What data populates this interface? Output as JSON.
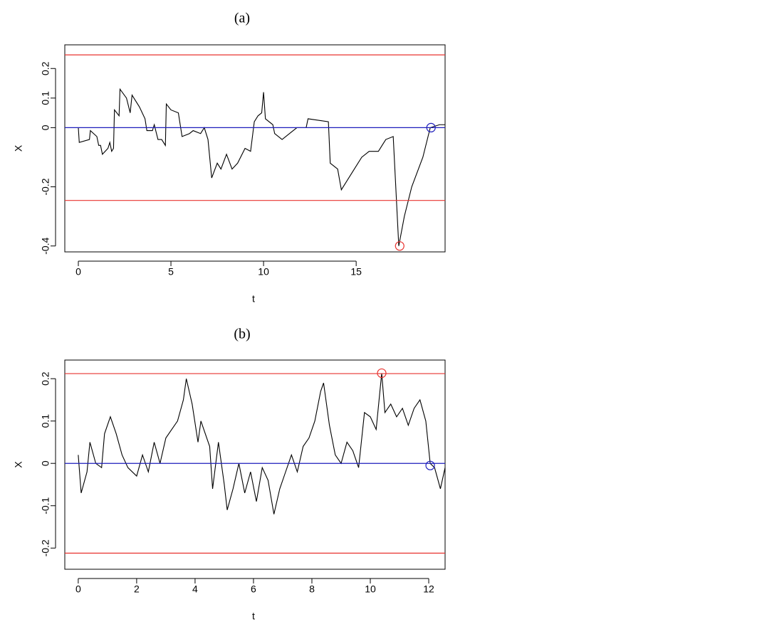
{
  "chart_data": [
    {
      "type": "line",
      "title": "(a)",
      "x_label": "t",
      "y_label": "X",
      "xlim": [
        -0.73,
        19.8
      ],
      "ylim": [
        -0.42,
        0.28
      ],
      "xticks": [
        0,
        5,
        10,
        15
      ],
      "yticks": [
        -0.4,
        -0.2,
        0.0,
        0.1,
        0.2
      ],
      "x": [
        0,
        0.05,
        0.6,
        0.65,
        1.0,
        1.1,
        1.2,
        1.3,
        1.6,
        1.7,
        1.8,
        1.9,
        1.95,
        2.2,
        2.25,
        2.6,
        2.8,
        2.9,
        3.3,
        3.6,
        3.7,
        4.0,
        4.1,
        4.3,
        4.5,
        4.7,
        4.75,
        5.0,
        5.4,
        5.6,
        6.0,
        6.2,
        6.6,
        6.8,
        7.0,
        7.2,
        7.5,
        7.7,
        8.0,
        8.3,
        8.6,
        9.0,
        9.3,
        9.5,
        9.7,
        9.9,
        10.0,
        10.1,
        10.5,
        10.6,
        11.0,
        11.4,
        11.8,
        12.3,
        12.4,
        13.5,
        13.6,
        14.0,
        14.2,
        14.6,
        14.9,
        15.3,
        15.7,
        16.2,
        16.4,
        16.6,
        17.0,
        17.3,
        17.6,
        18.0,
        18.6,
        19.0,
        19.5,
        19.8
      ],
      "series": [
        {
          "color": "#000000",
          "values": [
            0,
            -0.05,
            -0.04,
            -0.01,
            -0.03,
            -0.06,
            -0.06,
            -0.09,
            -0.07,
            -0.05,
            -0.08,
            -0.07,
            0.06,
            0.04,
            0.13,
            0.1,
            0.05,
            0.11,
            0.07,
            0.03,
            -0.01,
            -0.01,
            0.01,
            -0.04,
            -0.04,
            -0.06,
            0.08,
            0.06,
            0.05,
            -0.03,
            -0.02,
            -0.01,
            -0.02,
            0.0,
            -0.04,
            -0.17,
            -0.12,
            -0.14,
            -0.09,
            -0.14,
            -0.12,
            -0.07,
            -0.08,
            0.02,
            0.04,
            0.05,
            0.12,
            0.03,
            0.01,
            -0.02,
            -0.04,
            -0.02,
            0.0,
            0.0,
            0.03,
            0.02,
            -0.12,
            -0.14,
            -0.21,
            -0.17,
            -0.14,
            -0.1,
            -0.08,
            -0.08,
            -0.06,
            -0.04,
            -0.03,
            -0.4,
            -0.3,
            -0.2,
            -0.1,
            0.0,
            0.01,
            0.01
          ]
        }
      ],
      "hlines": [
        {
          "value": 0.246,
          "color": "#e8332f"
        },
        {
          "value": -0.246,
          "color": "#e8332f"
        },
        {
          "value": 0.0,
          "color": "#1d1dbb"
        }
      ],
      "markers": [
        {
          "x": 17.35,
          "y": -0.4,
          "color": "#e8332f"
        },
        {
          "x": 19.04,
          "y": 0.0,
          "color": "#1d1dbb"
        }
      ]
    },
    {
      "type": "line",
      "title": "(b)",
      "x_label": "t",
      "y_label": "X",
      "xlim": [
        -0.46,
        12.56
      ],
      "ylim": [
        -0.25,
        0.244
      ],
      "xticks": [
        0,
        2,
        4,
        6,
        8,
        10,
        12
      ],
      "yticks": [
        -0.2,
        -0.1,
        0.0,
        0.1,
        0.2
      ],
      "x": [
        0,
        0.1,
        0.3,
        0.4,
        0.6,
        0.8,
        0.9,
        1.1,
        1.3,
        1.5,
        1.7,
        2.0,
        2.2,
        2.4,
        2.6,
        2.8,
        3.0,
        3.2,
        3.4,
        3.6,
        3.7,
        3.9,
        4.1,
        4.2,
        4.4,
        4.5,
        4.6,
        4.8,
        5.0,
        5.1,
        5.3,
        5.5,
        5.7,
        5.9,
        6.1,
        6.3,
        6.5,
        6.7,
        6.9,
        7.1,
        7.3,
        7.5,
        7.7,
        7.9,
        8.1,
        8.3,
        8.4,
        8.6,
        8.8,
        9.0,
        9.2,
        9.4,
        9.6,
        9.8,
        10.0,
        10.2,
        10.39,
        10.5,
        10.7,
        10.9,
        11.1,
        11.3,
        11.5,
        11.7,
        11.9,
        12.05,
        12.2,
        12.4,
        12.56
      ],
      "series": [
        {
          "color": "#000000",
          "values": [
            0.02,
            -0.07,
            -0.02,
            0.05,
            0.0,
            -0.01,
            0.07,
            0.11,
            0.07,
            0.02,
            -0.01,
            -0.03,
            0.02,
            -0.02,
            0.05,
            0.0,
            0.06,
            0.08,
            0.1,
            0.15,
            0.2,
            0.14,
            0.05,
            0.1,
            0.06,
            0.04,
            -0.06,
            0.05,
            -0.05,
            -0.11,
            -0.06,
            0.0,
            -0.07,
            -0.02,
            -0.09,
            -0.01,
            -0.04,
            -0.12,
            -0.06,
            -0.02,
            0.02,
            -0.02,
            0.04,
            0.06,
            0.1,
            0.17,
            0.19,
            0.09,
            0.02,
            0.0,
            0.05,
            0.03,
            -0.01,
            0.12,
            0.11,
            0.08,
            0.213,
            0.12,
            0.14,
            0.11,
            0.13,
            0.09,
            0.13,
            0.15,
            0.1,
            0.0,
            -0.01,
            -0.06,
            -0.01
          ]
        }
      ],
      "hlines": [
        {
          "value": 0.212,
          "color": "#e8332f"
        },
        {
          "value": -0.212,
          "color": "#e8332f"
        },
        {
          "value": 0.0,
          "color": "#1d1dbb"
        }
      ],
      "markers": [
        {
          "x": 10.39,
          "y": 0.213,
          "color": "#e8332f"
        },
        {
          "x": 12.05,
          "y": -0.005,
          "color": "#1d1dbb"
        }
      ]
    }
  ]
}
